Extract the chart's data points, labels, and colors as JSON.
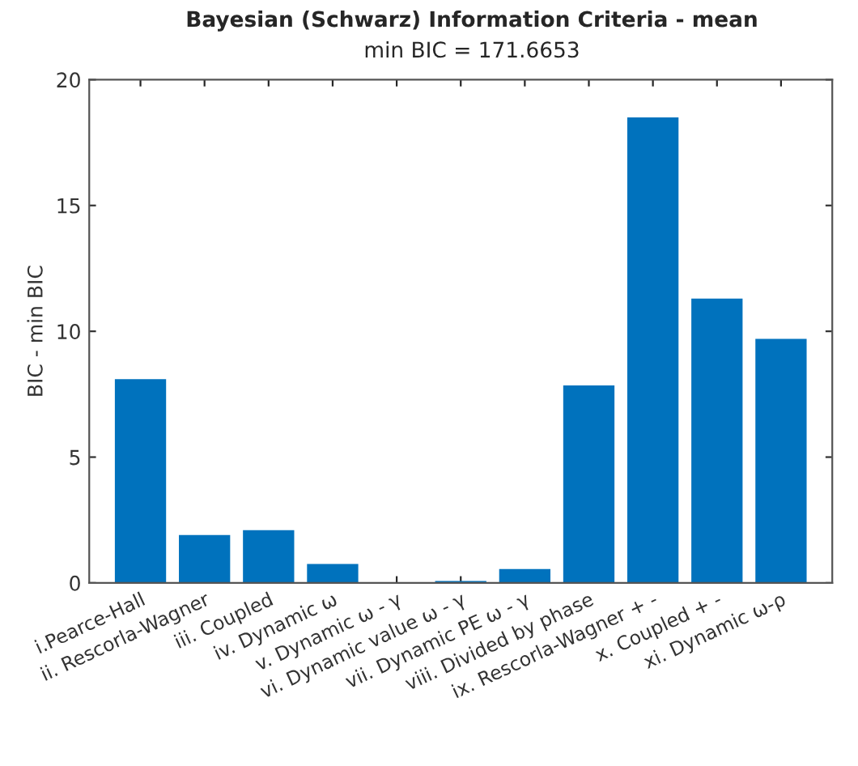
{
  "chart_data": {
    "type": "bar",
    "title": "Bayesian (Schwarz) Information Criteria - mean",
    "subtitle": "min BIC = 171.6653",
    "ylabel": "BIC - min BIC",
    "categories": [
      "i.Pearce-Hall",
      "ii. Rescorla-Wagner",
      "iii. Coupled",
      "iv. Dynamic ω",
      "v. Dynamic ω - γ",
      "vi. Dynamic value ω - γ",
      "vii. Dynamic PE ω - γ",
      "viii. Divided by phase",
      "ix. Rescorla-Wagner + -",
      "x. Coupled + -",
      "xi. Dynamic ω-ρ"
    ],
    "values": [
      8.1,
      1.9,
      2.1,
      0.75,
      0,
      0.08,
      0.55,
      7.85,
      18.5,
      11.3,
      9.7
    ],
    "color": "#0072bd",
    "ylim": [
      0,
      20
    ],
    "yticks": [
      0,
      5,
      10,
      15,
      20
    ],
    "grid": false,
    "legend": false
  }
}
